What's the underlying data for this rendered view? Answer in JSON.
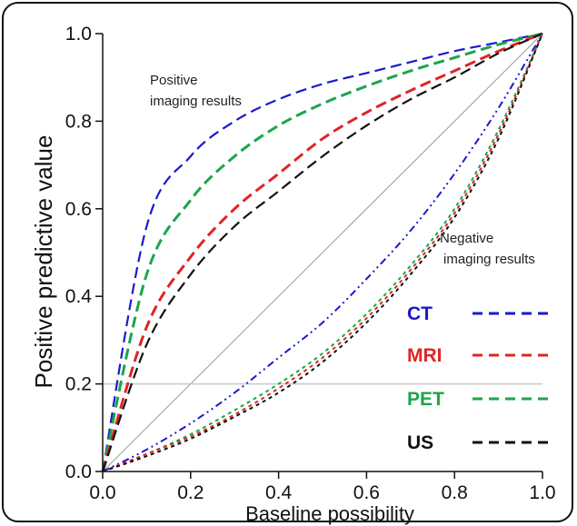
{
  "chart_data": {
    "type": "line",
    "xlabel": "Baseline  possibility",
    "ylabel": "Positive  predictive  value",
    "xlim": [
      0,
      1
    ],
    "ylim": [
      0,
      1
    ],
    "x_ticks": [
      "0.0",
      "0.2",
      "0.4",
      "0.6",
      "0.8",
      "1.0"
    ],
    "y_ticks": [
      "0.0",
      "0.2",
      "0.4",
      "0.6",
      "0.8",
      "1.0"
    ],
    "reference_lines": [
      {
        "type": "diagonal",
        "from": [
          0,
          0
        ],
        "to": [
          1,
          1
        ],
        "color": "#9a9a9a"
      },
      {
        "type": "horizontal",
        "y": 0.2,
        "color": "#c8c8c8"
      }
    ],
    "annotations": [
      {
        "text_lines": [
          "Positive",
          "imaging results"
        ],
        "group": "positive"
      },
      {
        "text_lines": [
          "Negative",
          "imaging results"
        ],
        "group": "negative"
      }
    ],
    "legend": {
      "placement": "right",
      "entries": [
        {
          "label": "CT",
          "color": "#1a1acd"
        },
        {
          "label": "MRI",
          "color": "#e02424"
        },
        {
          "label": "PET",
          "color": "#1aa64a"
        },
        {
          "label": "US",
          "color": "#111111"
        }
      ]
    },
    "series": [
      {
        "modality": "CT",
        "group": "positive",
        "color": "#1a1acd",
        "x": [
          0,
          0.1,
          0.2,
          0.3,
          0.4,
          0.5,
          0.6,
          0.7,
          0.8,
          0.9,
          1.0
        ],
        "y": [
          0,
          0.56,
          0.72,
          0.8,
          0.85,
          0.885,
          0.91,
          0.935,
          0.96,
          0.98,
          1.0
        ]
      },
      {
        "modality": "PET",
        "group": "positive",
        "color": "#1aa64a",
        "x": [
          0,
          0.1,
          0.2,
          0.3,
          0.4,
          0.5,
          0.6,
          0.7,
          0.8,
          0.9,
          1.0
        ],
        "y": [
          0,
          0.45,
          0.62,
          0.72,
          0.79,
          0.84,
          0.88,
          0.915,
          0.945,
          0.975,
          1.0
        ]
      },
      {
        "modality": "MRI",
        "group": "positive",
        "color": "#e02424",
        "x": [
          0,
          0.1,
          0.2,
          0.3,
          0.4,
          0.5,
          0.6,
          0.7,
          0.8,
          0.9,
          1.0
        ],
        "y": [
          0,
          0.33,
          0.49,
          0.6,
          0.68,
          0.76,
          0.82,
          0.87,
          0.915,
          0.96,
          1.0
        ]
      },
      {
        "modality": "US",
        "group": "positive",
        "color": "#111111",
        "x": [
          0,
          0.1,
          0.2,
          0.3,
          0.4,
          0.5,
          0.6,
          0.7,
          0.8,
          0.9,
          1.0
        ],
        "y": [
          0,
          0.29,
          0.45,
          0.56,
          0.64,
          0.72,
          0.79,
          0.85,
          0.9,
          0.955,
          1.0
        ]
      },
      {
        "modality": "CT",
        "group": "negative",
        "color": "#1a1acd",
        "x": [
          0,
          0.1,
          0.2,
          0.3,
          0.4,
          0.5,
          0.6,
          0.7,
          0.8,
          0.9,
          1.0
        ],
        "y": [
          0,
          0.05,
          0.11,
          0.18,
          0.26,
          0.34,
          0.44,
          0.55,
          0.68,
          0.83,
          1.0
        ]
      },
      {
        "modality": "PET",
        "group": "negative",
        "color": "#1aa64a",
        "x": [
          0,
          0.1,
          0.2,
          0.3,
          0.4,
          0.5,
          0.6,
          0.7,
          0.8,
          0.9,
          1.0
        ],
        "y": [
          0,
          0.04,
          0.085,
          0.14,
          0.2,
          0.27,
          0.36,
          0.47,
          0.6,
          0.78,
          1.0
        ]
      },
      {
        "modality": "MRI",
        "group": "negative",
        "color": "#e02424",
        "x": [
          0,
          0.1,
          0.2,
          0.3,
          0.4,
          0.5,
          0.6,
          0.7,
          0.8,
          0.9,
          1.0
        ],
        "y": [
          0,
          0.04,
          0.08,
          0.13,
          0.19,
          0.26,
          0.35,
          0.46,
          0.59,
          0.77,
          1.0
        ]
      },
      {
        "modality": "US",
        "group": "negative",
        "color": "#111111",
        "x": [
          0,
          0.1,
          0.2,
          0.3,
          0.4,
          0.5,
          0.6,
          0.7,
          0.8,
          0.9,
          1.0
        ],
        "y": [
          0,
          0.035,
          0.075,
          0.125,
          0.18,
          0.25,
          0.34,
          0.45,
          0.58,
          0.76,
          1.0
        ]
      }
    ]
  }
}
